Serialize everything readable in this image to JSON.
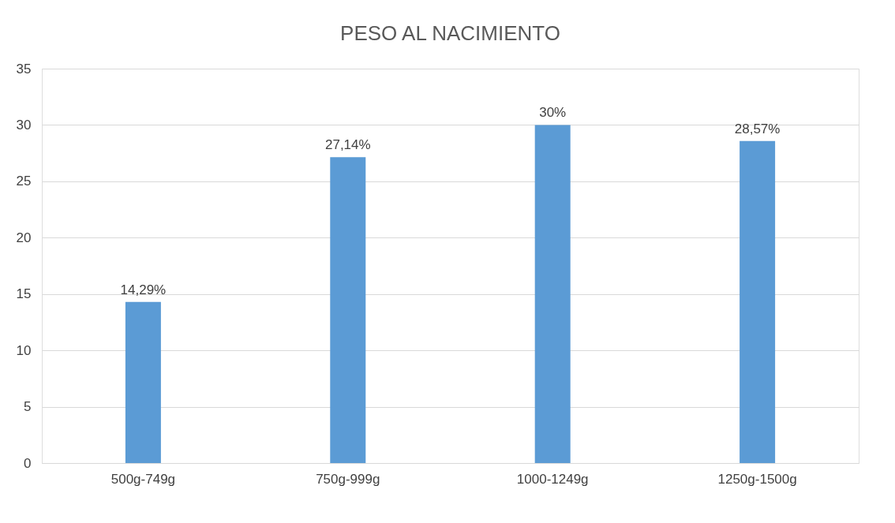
{
  "chart_data": {
    "type": "bar",
    "title": "PESO AL NACIMIENTO",
    "categories": [
      "500g-749g",
      "750g-999g",
      "1000-1249g",
      "1250g-1500g"
    ],
    "series": [
      {
        "color": "#5b9bd5",
        "values": [
          14.29,
          27.14,
          30,
          28.57
        ]
      }
    ],
    "value_labels": [
      "14,29%",
      "27,14%",
      "30%",
      "28,57%"
    ],
    "ylim": [
      0,
      35
    ],
    "yticks": [
      0,
      5,
      10,
      15,
      20,
      25,
      30,
      35
    ],
    "grid": "y",
    "legend": false
  }
}
